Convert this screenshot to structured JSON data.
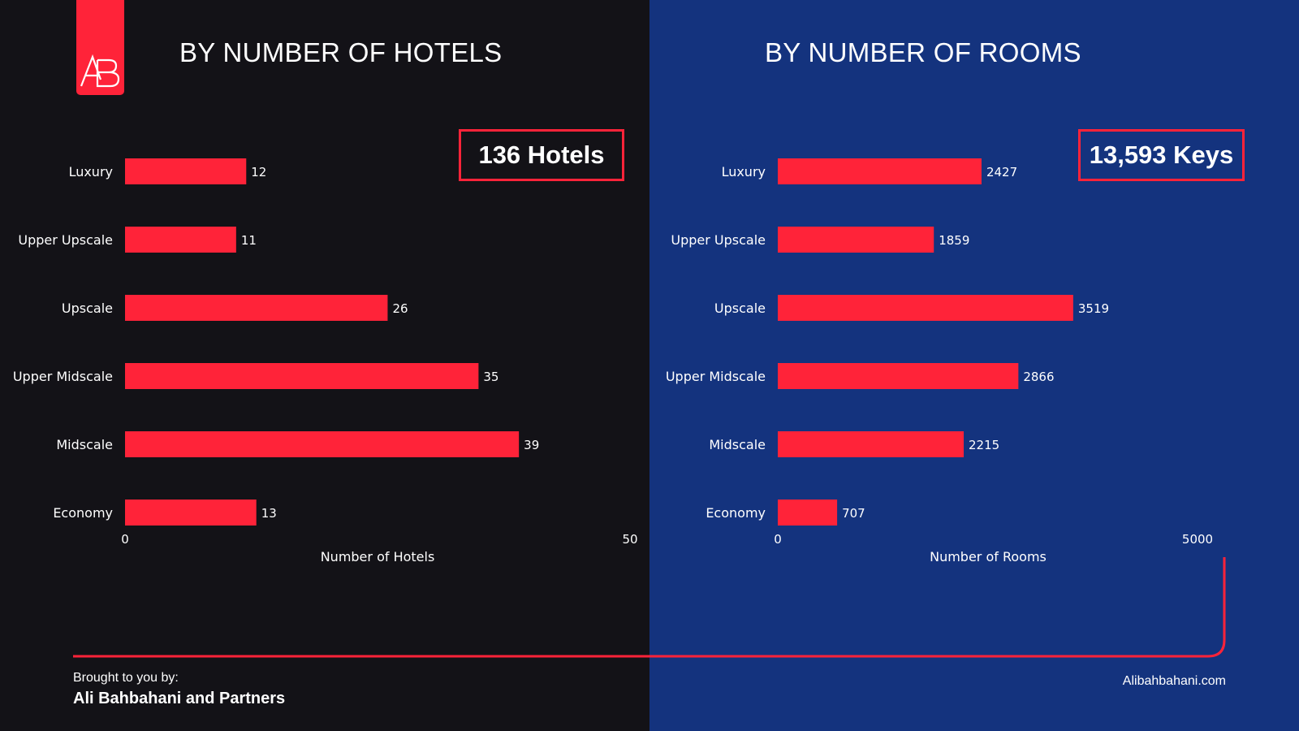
{
  "colors": {
    "accent": "#ff2339",
    "left_bg": "#131217",
    "right_bg": "#14337e",
    "text": "#ffffff"
  },
  "logo": {
    "text": "AB"
  },
  "left": {
    "title": "BY NUMBER OF HOTELS",
    "total": "136 Hotels"
  },
  "right": {
    "title": "BY NUMBER OF ROOMS",
    "total": "13,593 Keys"
  },
  "chart_data": [
    {
      "type": "bar",
      "orientation": "horizontal",
      "categories": [
        "Luxury",
        "Upper Upscale",
        "Upscale",
        "Upper Midscale",
        "Midscale",
        "Economy"
      ],
      "values": [
        12,
        11,
        26,
        35,
        39,
        13
      ],
      "xlabel": "Number of Hotels",
      "xlim": [
        0,
        50
      ],
      "x_ticks": [
        "0",
        "50"
      ],
      "grid": false,
      "data_labels": true
    },
    {
      "type": "bar",
      "orientation": "horizontal",
      "categories": [
        "Luxury",
        "Upper Upscale",
        "Upscale",
        "Upper Midscale",
        "Midscale",
        "Economy"
      ],
      "values": [
        2427,
        1859,
        3519,
        2866,
        2215,
        707
      ],
      "xlabel": "Number of Rooms",
      "xlim": [
        0,
        5000
      ],
      "x_ticks": [
        "0",
        "5000"
      ],
      "grid": false,
      "data_labels": true
    }
  ],
  "footer": {
    "brought_by": "Brought to you by:",
    "name": "Ali Bahbahani and Partners",
    "website": "Alibahbahani.com"
  }
}
